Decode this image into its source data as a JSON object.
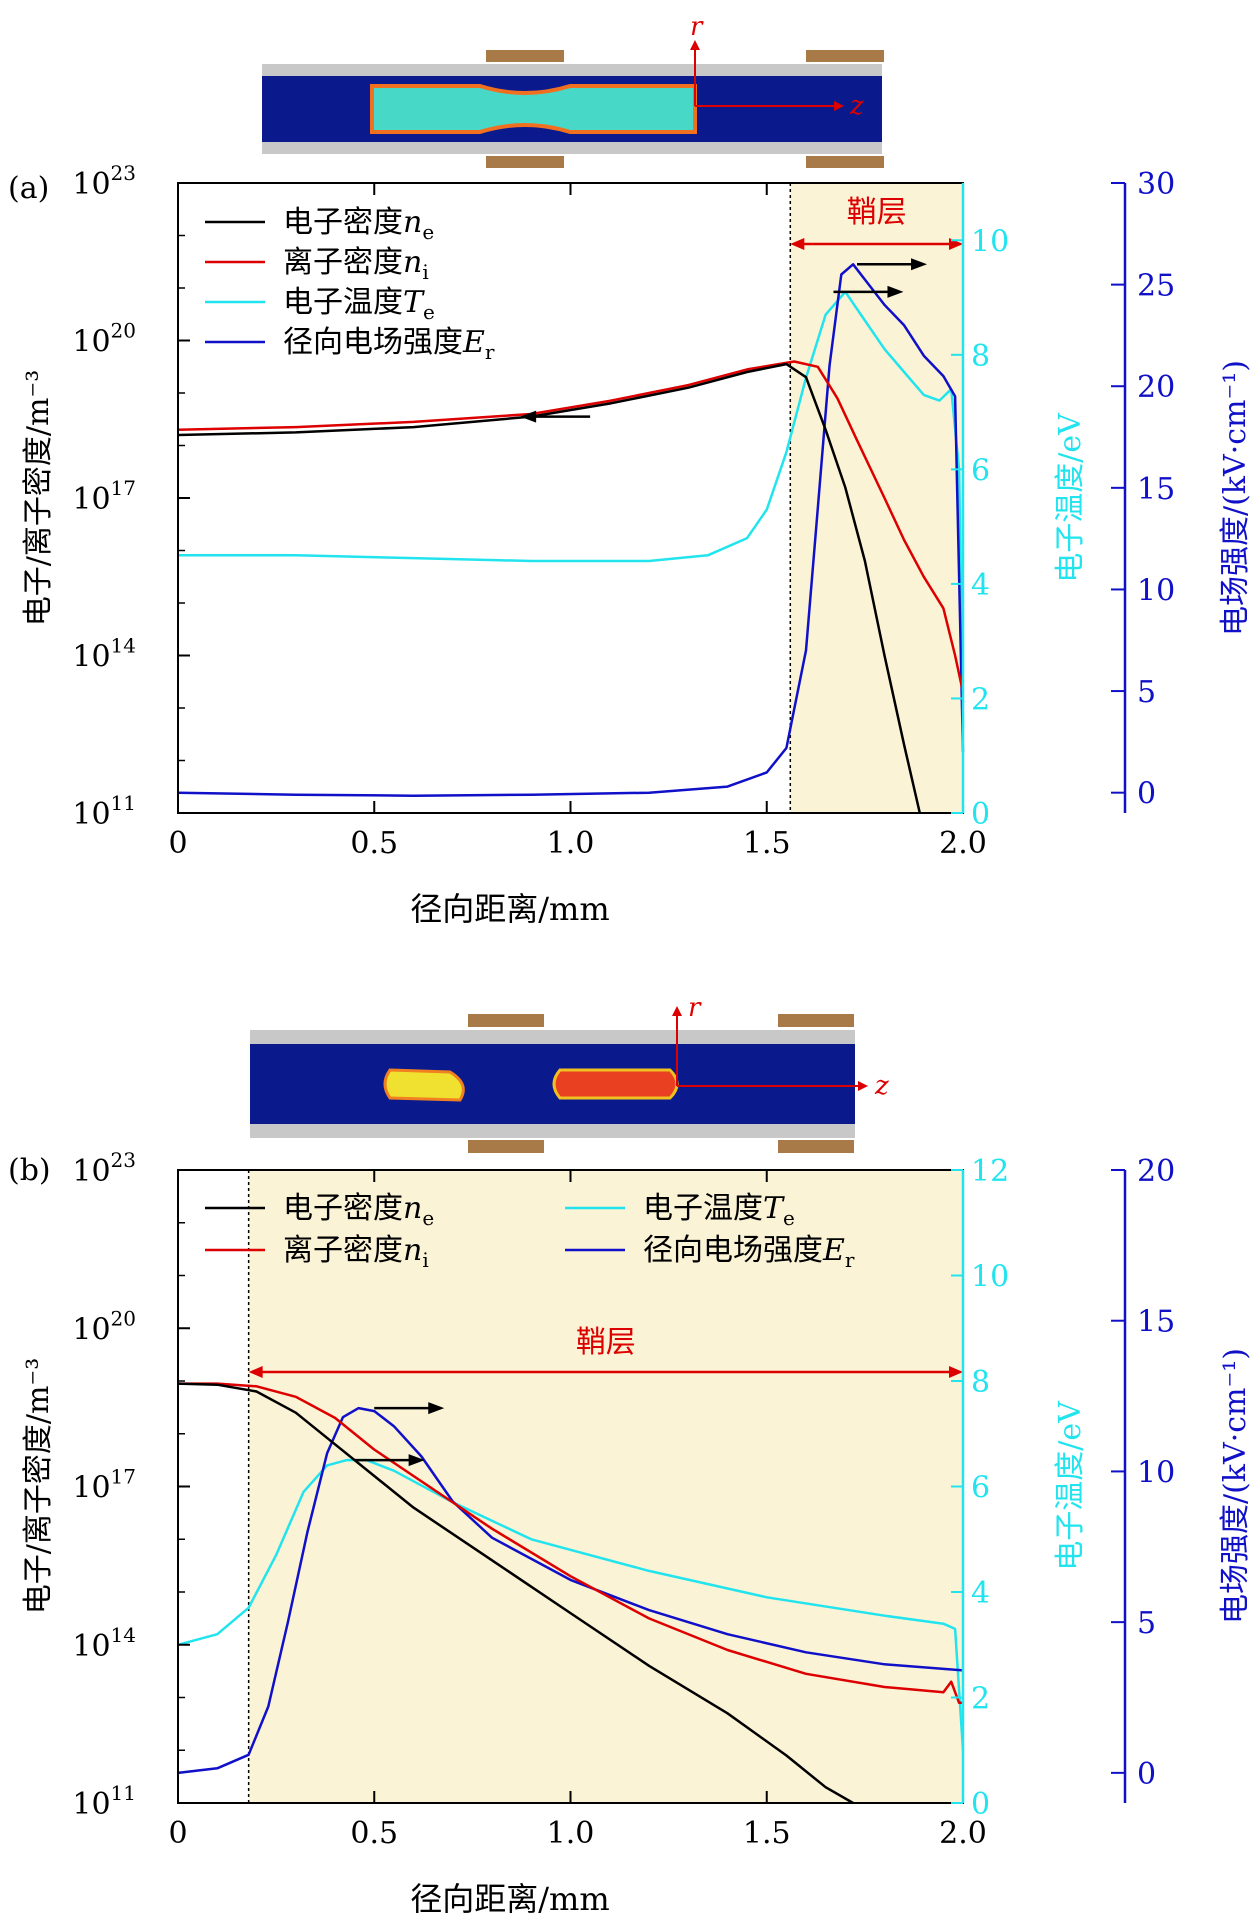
{
  "colors": {
    "electron_density": "#000000",
    "ion_density": "#dd0000",
    "electron_temperature": "#22e4ee",
    "radial_field": "#1010c8",
    "sheath_fill": "#fbf3d6",
    "sheath_label": "#dd0000",
    "axis_left": "#000000",
    "axis_mid": "#22e4ee",
    "axis_right": "#1010c8",
    "tube_wall": "#c8c8c8",
    "tube_inner": "#0a1a8c",
    "electrode": "#a87a48",
    "coord_axes": "#dd0000"
  },
  "icons": {
    "arrow": "black-arrow-right",
    "inset": "discharge-tube-schematic"
  },
  "chart_data": [
    {
      "panel_label": "(a)",
      "type": "line",
      "xlabel": "径向距离/mm",
      "ylabel_left": "电子/离子密度/m⁻³",
      "ylabel_mid": "电子温度/eV",
      "ylabel_right": "电场强度/(kV·cm⁻¹)",
      "xlim": [
        0,
        2.0
      ],
      "x_ticks": [
        "0",
        "0.5",
        "1.0",
        "1.5",
        "2.0"
      ],
      "y_left_log": true,
      "y_left_lim_exp": [
        11,
        23
      ],
      "y_left_ticks": [
        "10^11",
        "10^14",
        "10^17",
        "10^20",
        "10^23"
      ],
      "y_mid_lim": [
        0,
        11
      ],
      "y_mid_ticks": [
        "0",
        "2",
        "4",
        "6",
        "8",
        "10"
      ],
      "y_right_lim": [
        -1,
        30
      ],
      "y_right_ticks": [
        "0",
        "5",
        "10",
        "15",
        "20",
        "25",
        "30"
      ],
      "sheath": {
        "label": "鞘层",
        "x_start": 1.56,
        "x_end": 2.0
      },
      "inset_axes": {
        "r": "r",
        "z": "z"
      },
      "legend": [
        {
          "name": "电子密度",
          "symbol": "n",
          "sub": "e",
          "key": "electron_density"
        },
        {
          "name": "离子密度",
          "symbol": "n",
          "sub": "i",
          "key": "ion_density"
        },
        {
          "name": "电子温度",
          "symbol": "T",
          "sub": "e",
          "key": "electron_temperature"
        },
        {
          "name": "径向电场强度",
          "symbol": "E",
          "sub": "r",
          "key": "radial_field"
        }
      ],
      "series": [
        {
          "key": "electron_density",
          "axis": "left_log",
          "x": [
            0,
            0.3,
            0.6,
            0.9,
            1.1,
            1.3,
            1.45,
            1.55,
            1.6,
            1.65,
            1.7,
            1.75,
            1.8,
            1.85,
            1.89
          ],
          "y": [
            18.2,
            18.25,
            18.35,
            18.55,
            18.8,
            19.1,
            19.4,
            19.55,
            19.3,
            18.3,
            17.2,
            15.8,
            14.0,
            12.3,
            11.0
          ]
        },
        {
          "key": "ion_density",
          "axis": "left_log",
          "x": [
            0,
            0.3,
            0.6,
            0.9,
            1.1,
            1.3,
            1.45,
            1.57,
            1.63,
            1.68,
            1.73,
            1.8,
            1.85,
            1.9,
            1.95,
            1.98,
            2.0
          ],
          "y": [
            18.3,
            18.35,
            18.45,
            18.6,
            18.85,
            19.15,
            19.45,
            19.6,
            19.5,
            18.9,
            18.1,
            17.0,
            16.2,
            15.5,
            14.9,
            14.0,
            13.3
          ]
        },
        {
          "key": "electron_temperature",
          "axis": "mid",
          "x": [
            0,
            0.3,
            0.6,
            0.9,
            1.2,
            1.35,
            1.45,
            1.5,
            1.55,
            1.6,
            1.65,
            1.7,
            1.75,
            1.8,
            1.85,
            1.9,
            1.94,
            1.97,
            1.99,
            2.0
          ],
          "y": [
            4.5,
            4.5,
            4.45,
            4.4,
            4.4,
            4.5,
            4.8,
            5.3,
            6.3,
            7.6,
            8.7,
            9.1,
            8.6,
            8.1,
            7.7,
            7.3,
            7.2,
            7.4,
            6.0,
            1.5
          ]
        },
        {
          "key": "radial_field",
          "axis": "right",
          "x": [
            0,
            0.3,
            0.6,
            0.9,
            1.2,
            1.4,
            1.5,
            1.55,
            1.6,
            1.63,
            1.66,
            1.69,
            1.72,
            1.76,
            1.8,
            1.85,
            1.9,
            1.95,
            1.98,
            2.0
          ],
          "y": [
            0.0,
            -0.1,
            -0.15,
            -0.1,
            0.0,
            0.3,
            1.0,
            2.2,
            7.0,
            14.0,
            21.0,
            25.5,
            26.0,
            25.0,
            24.0,
            23.0,
            21.5,
            20.5,
            19.5,
            2.0
          ]
        }
      ]
    },
    {
      "panel_label": "(b)",
      "type": "line",
      "xlabel": "径向距离/mm",
      "ylabel_left": "电子/离子密度/m⁻³",
      "ylabel_mid": "电子温度/eV",
      "ylabel_right": "电场强度/(kV·cm⁻¹)",
      "xlim": [
        0,
        2.0
      ],
      "x_ticks": [
        "0",
        "0.5",
        "1.0",
        "1.5",
        "2.0"
      ],
      "y_left_log": true,
      "y_left_lim_exp": [
        11,
        23
      ],
      "y_left_ticks": [
        "10^11",
        "10^14",
        "10^17",
        "10^20",
        "10^23"
      ],
      "y_mid_lim": [
        0,
        12
      ],
      "y_mid_ticks": [
        "0",
        "2",
        "4",
        "6",
        "8",
        "10",
        "12"
      ],
      "y_right_lim": [
        -1,
        20
      ],
      "y_right_ticks": [
        "0",
        "5",
        "10",
        "15",
        "20"
      ],
      "sheath": {
        "label": "鞘层",
        "x_start": 0.18,
        "x_end": 2.0
      },
      "inset_axes": {
        "r": "r",
        "z": "z"
      },
      "legend": [
        {
          "name": "电子密度",
          "symbol": "n",
          "sub": "e",
          "key": "electron_density"
        },
        {
          "name": "离子密度",
          "symbol": "n",
          "sub": "i",
          "key": "ion_density"
        },
        {
          "name": "电子温度",
          "symbol": "T",
          "sub": "e",
          "key": "electron_temperature"
        },
        {
          "name": "径向电场强度",
          "symbol": "E",
          "sub": "r",
          "key": "radial_field"
        }
      ],
      "series": [
        {
          "key": "electron_density",
          "axis": "left_log",
          "x": [
            0,
            0.1,
            0.2,
            0.3,
            0.4,
            0.5,
            0.6,
            0.8,
            1.0,
            1.2,
            1.4,
            1.55,
            1.65,
            1.72
          ],
          "y": [
            18.95,
            18.93,
            18.8,
            18.4,
            17.8,
            17.2,
            16.6,
            15.6,
            14.6,
            13.6,
            12.7,
            11.9,
            11.3,
            11.0
          ]
        },
        {
          "key": "ion_density",
          "axis": "left_log",
          "x": [
            0,
            0.1,
            0.2,
            0.3,
            0.4,
            0.5,
            0.6,
            0.8,
            1.0,
            1.2,
            1.4,
            1.6,
            1.8,
            1.95,
            1.97,
            1.99,
            2.0
          ],
          "y": [
            18.95,
            18.95,
            18.9,
            18.7,
            18.3,
            17.7,
            17.2,
            16.2,
            15.3,
            14.5,
            13.9,
            13.45,
            13.2,
            13.1,
            13.3,
            12.9,
            12.9
          ]
        },
        {
          "key": "electron_temperature",
          "axis": "mid",
          "x": [
            0,
            0.1,
            0.18,
            0.25,
            0.32,
            0.38,
            0.43,
            0.48,
            0.55,
            0.7,
            0.9,
            1.2,
            1.5,
            1.8,
            1.95,
            1.98,
            2.0
          ],
          "y": [
            3.0,
            3.2,
            3.7,
            4.7,
            5.9,
            6.4,
            6.5,
            6.5,
            6.3,
            5.7,
            5.0,
            4.4,
            3.9,
            3.55,
            3.4,
            3.3,
            1.0
          ]
        },
        {
          "key": "radial_field",
          "axis": "right",
          "x": [
            0,
            0.1,
            0.18,
            0.23,
            0.28,
            0.33,
            0.38,
            0.42,
            0.46,
            0.5,
            0.55,
            0.62,
            0.7,
            0.8,
            1.0,
            1.2,
            1.4,
            1.6,
            1.8,
            2.0
          ],
          "y": [
            0.0,
            0.15,
            0.6,
            2.2,
            5.0,
            8.0,
            10.6,
            11.8,
            12.1,
            12.0,
            11.5,
            10.5,
            9.0,
            7.8,
            6.4,
            5.4,
            4.6,
            4.0,
            3.6,
            3.4
          ]
        }
      ]
    }
  ]
}
